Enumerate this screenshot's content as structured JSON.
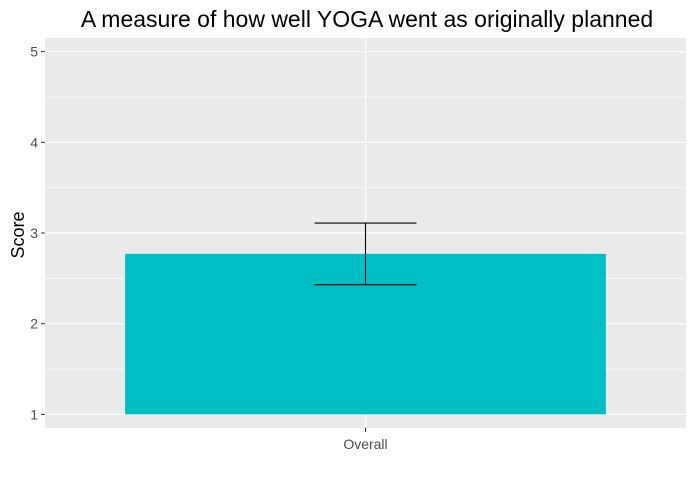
{
  "chart_data": {
    "type": "bar",
    "title": "A measure of how well YOGA went as originally planned",
    "xlabel": "",
    "ylabel": "Score",
    "categories": [
      "Overall"
    ],
    "values": [
      2.77
    ],
    "error_bars": [
      {
        "low": 2.43,
        "high": 3.11
      }
    ],
    "base": 1,
    "ylim": [
      0.85,
      5.15
    ],
    "yticks": [
      1,
      2,
      3,
      4,
      5
    ],
    "grid": true,
    "legend": "none",
    "colors": {
      "bar": "#00BFC4",
      "panel": "#EBEBEB",
      "grid": "#FFFFFF",
      "error_bar": "#000000"
    }
  }
}
